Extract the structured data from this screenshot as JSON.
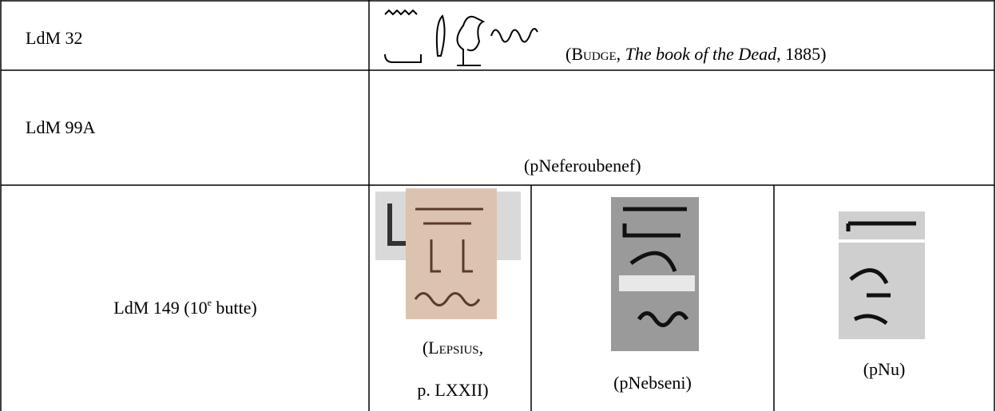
{
  "table": {
    "rows": [
      {
        "label": "LdM 32",
        "source": {
          "open": "(",
          "author": "Budge",
          "sep": ", ",
          "title": "The book of the Dead",
          "close": ", 1885)"
        }
      },
      {
        "label": "LdM 99A",
        "source": "(pNeferoubenef)"
      },
      {
        "label": {
          "before": "LdM 149 (10",
          "sup": "e",
          "after": " butte)"
        },
        "sources": [
          {
            "line1": {
              "open": "(",
              "author": "Lepsius",
              "close": ","
            },
            "line2": "p. LXXII)"
          },
          "(pNebseni)",
          "(pNu)"
        ]
      }
    ]
  }
}
